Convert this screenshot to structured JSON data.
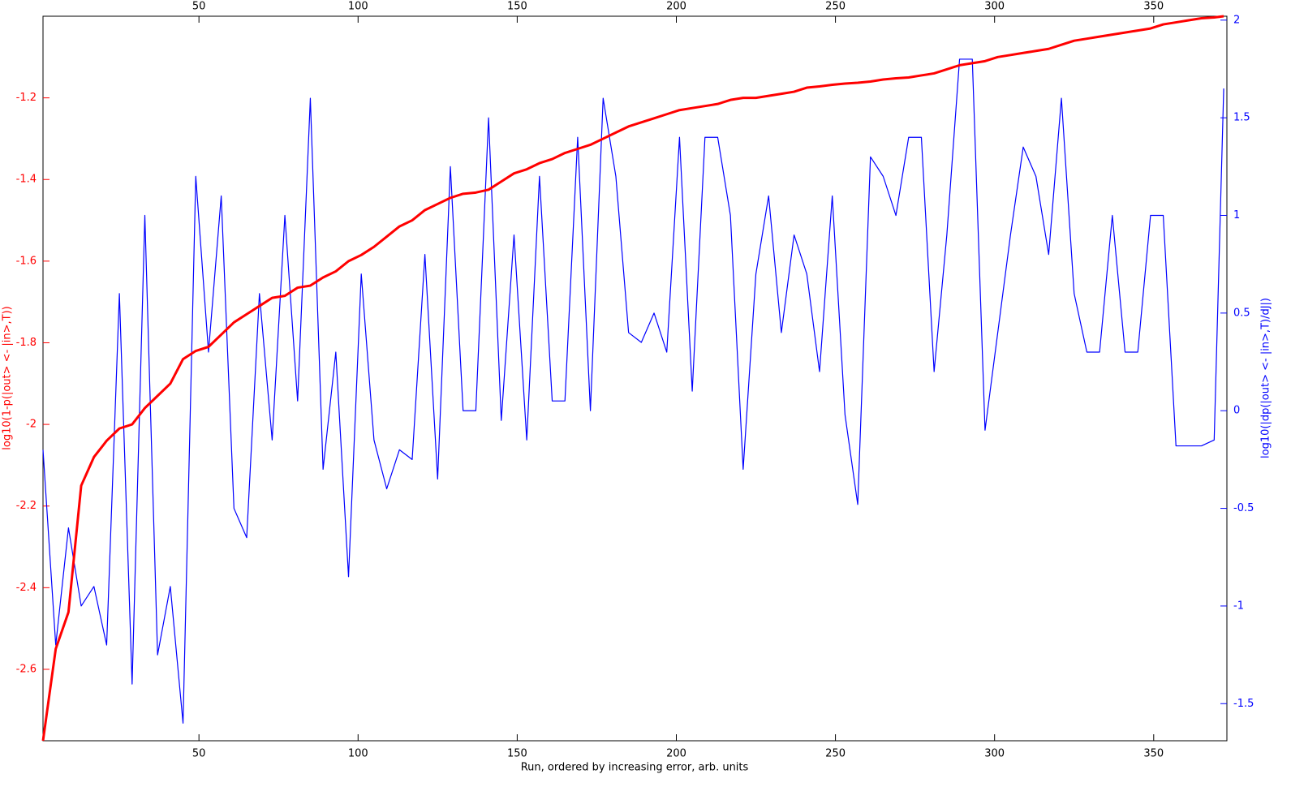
{
  "chart_data": {
    "type": "line",
    "xlabel": "Run, ordered by increasing error, arb. units",
    "ylabel": "log10(1-p(|out> <- |in>,T))",
    "y2label": "log10(|dp(|out> <- |in>,T)/dJ|)",
    "x": [
      1,
      5,
      9,
      13,
      17,
      21,
      25,
      29,
      33,
      37,
      41,
      45,
      49,
      53,
      57,
      61,
      65,
      69,
      73,
      77,
      81,
      85,
      89,
      93,
      97,
      101,
      105,
      109,
      113,
      117,
      121,
      125,
      129,
      133,
      137,
      141,
      145,
      149,
      153,
      157,
      161,
      165,
      169,
      173,
      177,
      181,
      185,
      189,
      193,
      197,
      201,
      205,
      209,
      213,
      217,
      221,
      225,
      229,
      233,
      237,
      241,
      245,
      249,
      253,
      257,
      261,
      265,
      269,
      273,
      277,
      281,
      285,
      289,
      293,
      297,
      301,
      305,
      309,
      313,
      317,
      321,
      325,
      329,
      333,
      337,
      341,
      345,
      349,
      353,
      357,
      361,
      365,
      369,
      372
    ],
    "series": [
      {
        "color": "#ff0000",
        "axis": "y",
        "values": [
          -2.775,
          -2.55,
          -2.46,
          -2.15,
          -2.08,
          -2.04,
          -2.01,
          -2.0,
          -1.96,
          -1.93,
          -1.9,
          -1.84,
          -1.82,
          -1.81,
          -1.78,
          -1.75,
          -1.73,
          -1.71,
          -1.69,
          -1.685,
          -1.665,
          -1.66,
          -1.64,
          -1.625,
          -1.6,
          -1.585,
          -1.565,
          -1.54,
          -1.515,
          -1.5,
          -1.475,
          -1.46,
          -1.445,
          -1.435,
          -1.432,
          -1.425,
          -1.405,
          -1.385,
          -1.375,
          -1.36,
          -1.35,
          -1.335,
          -1.325,
          -1.315,
          -1.3,
          -1.285,
          -1.27,
          -1.26,
          -1.25,
          -1.24,
          -1.23,
          -1.225,
          -1.22,
          -1.215,
          -1.205,
          -1.2,
          -1.2,
          -1.195,
          -1.19,
          -1.185,
          -1.175,
          -1.172,
          -1.168,
          -1.165,
          -1.163,
          -1.16,
          -1.155,
          -1.152,
          -1.15,
          -1.145,
          -1.14,
          -1.13,
          -1.12,
          -1.115,
          -1.11,
          -1.1,
          -1.095,
          -1.09,
          -1.085,
          -1.08,
          -1.07,
          -1.06,
          -1.055,
          -1.05,
          -1.045,
          -1.04,
          -1.035,
          -1.03,
          -1.02,
          -1.015,
          -1.01,
          -1.005,
          -1.003,
          -1.0
        ]
      },
      {
        "color": "#0000ff",
        "axis": "y2",
        "values": [
          -0.2,
          -1.2,
          -0.6,
          -1.0,
          -0.9,
          -1.2,
          0.6,
          -1.4,
          1.0,
          -1.25,
          -0.9,
          -1.6,
          1.2,
          0.3,
          1.1,
          -0.5,
          -0.65,
          0.6,
          -0.15,
          1.0,
          0.05,
          1.6,
          -0.3,
          0.3,
          -0.85,
          0.7,
          -0.15,
          -0.4,
          -0.2,
          -0.25,
          0.8,
          -0.35,
          1.25,
          0.0,
          0.0,
          1.5,
          -0.05,
          0.9,
          -0.15,
          1.2,
          0.05,
          0.05,
          1.4,
          0.0,
          1.6,
          1.2,
          0.4,
          0.35,
          0.5,
          0.3,
          1.4,
          0.1,
          1.4,
          1.4,
          1.0,
          -0.3,
          0.7,
          1.1,
          0.4,
          0.9,
          0.7,
          0.2,
          1.1,
          -0.02,
          -0.48,
          1.3,
          1.2,
          1.0,
          1.4,
          1.4,
          0.2,
          0.9,
          1.8,
          1.8,
          -0.1,
          0.4,
          0.9,
          1.35,
          1.2,
          0.8,
          1.6,
          0.6,
          0.3,
          0.3,
          1.0,
          0.3,
          0.3,
          1.0,
          1.0,
          -0.18,
          -0.18,
          -0.18,
          -0.15,
          1.65
        ]
      }
    ],
    "xlim": [
      1,
      373
    ],
    "xticks": [
      50,
      100,
      150,
      200,
      250,
      300,
      350
    ],
    "ylim": [
      -2.775,
      -1.0
    ],
    "yticks": [
      -2.6,
      -2.4,
      -2.2,
      -2,
      -1.8,
      -1.6,
      -1.4,
      -1.2
    ],
    "y2lim": [
      -1.69,
      2.02
    ],
    "y2ticks": [
      -1.5,
      -1,
      -0.5,
      0,
      0.5,
      1,
      1.5,
      2
    ],
    "grid": false
  }
}
